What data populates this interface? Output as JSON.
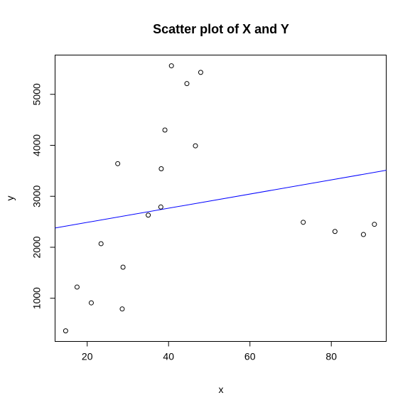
{
  "chart_data": {
    "type": "scatter",
    "title": "Scatter plot of X and Y",
    "xlabel": "x",
    "ylabel": "y",
    "xlim": [
      12.1,
      93.5
    ],
    "ylim": [
      153,
      5770
    ],
    "x_ticks": [
      20,
      40,
      60,
      80
    ],
    "y_ticks": [
      1000,
      2000,
      3000,
      4000,
      5000
    ],
    "grid": false,
    "points": [
      {
        "x": 14.7,
        "y": 360
      },
      {
        "x": 17.5,
        "y": 1220
      },
      {
        "x": 21.0,
        "y": 910
      },
      {
        "x": 23.4,
        "y": 2070
      },
      {
        "x": 27.5,
        "y": 3640
      },
      {
        "x": 28.6,
        "y": 790
      },
      {
        "x": 28.8,
        "y": 1610
      },
      {
        "x": 35.0,
        "y": 2630
      },
      {
        "x": 38.1,
        "y": 2790
      },
      {
        "x": 38.2,
        "y": 3540
      },
      {
        "x": 39.1,
        "y": 4300
      },
      {
        "x": 40.7,
        "y": 5560
      },
      {
        "x": 44.5,
        "y": 5210
      },
      {
        "x": 46.6,
        "y": 3990
      },
      {
        "x": 47.9,
        "y": 5430
      },
      {
        "x": 73.1,
        "y": 2490
      },
      {
        "x": 80.9,
        "y": 2310
      },
      {
        "x": 87.9,
        "y": 2250
      },
      {
        "x": 90.6,
        "y": 2450
      }
    ],
    "fit_line": {
      "intercept": 2210,
      "slope": 13.9,
      "color": "#0000ff"
    },
    "point_style": "open-circle",
    "point_color": "#000000"
  }
}
